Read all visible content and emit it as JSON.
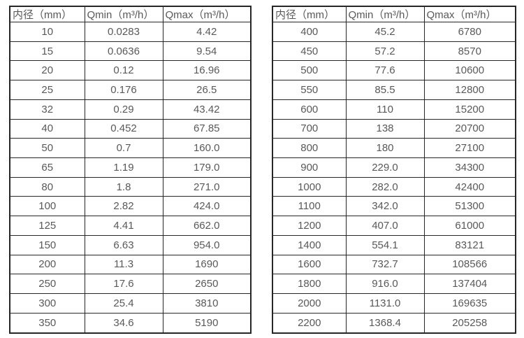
{
  "chart_data": [
    {
      "type": "table",
      "title": "",
      "headers": [
        "内径（mm）",
        "Qmin（m³/h）",
        "Qmax（m³/h）"
      ],
      "rows": [
        [
          "10",
          "0.0283",
          "4.42"
        ],
        [
          "15",
          "0.0636",
          "9.54"
        ],
        [
          "20",
          "0.12",
          "16.96"
        ],
        [
          "25",
          "0.176",
          "26.5"
        ],
        [
          "32",
          "0.29",
          "43.42"
        ],
        [
          "40",
          "0.452",
          "67.85"
        ],
        [
          "50",
          "0.7",
          "160.0"
        ],
        [
          "65",
          "1.19",
          "179.0"
        ],
        [
          "80",
          "1.8",
          "271.0"
        ],
        [
          "100",
          "2.82",
          "424.0"
        ],
        [
          "125",
          "4.41",
          "662.0"
        ],
        [
          "150",
          "6.63",
          "954.0"
        ],
        [
          "200",
          "11.3",
          "1690"
        ],
        [
          "250",
          "17.6",
          "2650"
        ],
        [
          "300",
          "25.4",
          "3810"
        ],
        [
          "350",
          "34.6",
          "5190"
        ]
      ]
    },
    {
      "type": "table",
      "title": "",
      "headers": [
        "内径（mm）",
        "Qmin（m³/h）",
        "Qmax（m³/h）"
      ],
      "rows": [
        [
          "400",
          "45.2",
          "6780"
        ],
        [
          "450",
          "57.2",
          "8570"
        ],
        [
          "500",
          "77.6",
          "10600"
        ],
        [
          "550",
          "85.5",
          "12800"
        ],
        [
          "600",
          "110",
          "15200"
        ],
        [
          "700",
          "138",
          "20700"
        ],
        [
          "800",
          "180",
          "27100"
        ],
        [
          "900",
          "229.0",
          "34300"
        ],
        [
          "1000",
          "282.0",
          "42400"
        ],
        [
          "1100",
          "342.0",
          "51300"
        ],
        [
          "1200",
          "407.0",
          "61000"
        ],
        [
          "1400",
          "554.1",
          "83121"
        ],
        [
          "1600",
          "732.7",
          "108566"
        ],
        [
          "1800",
          "916.0",
          "137404"
        ],
        [
          "2000",
          "1131.0",
          "169635"
        ],
        [
          "2200",
          "1368.4",
          "205258"
        ]
      ]
    }
  ],
  "colors": {
    "border": "#262626",
    "text": "#595959",
    "background": "#ffffff"
  }
}
